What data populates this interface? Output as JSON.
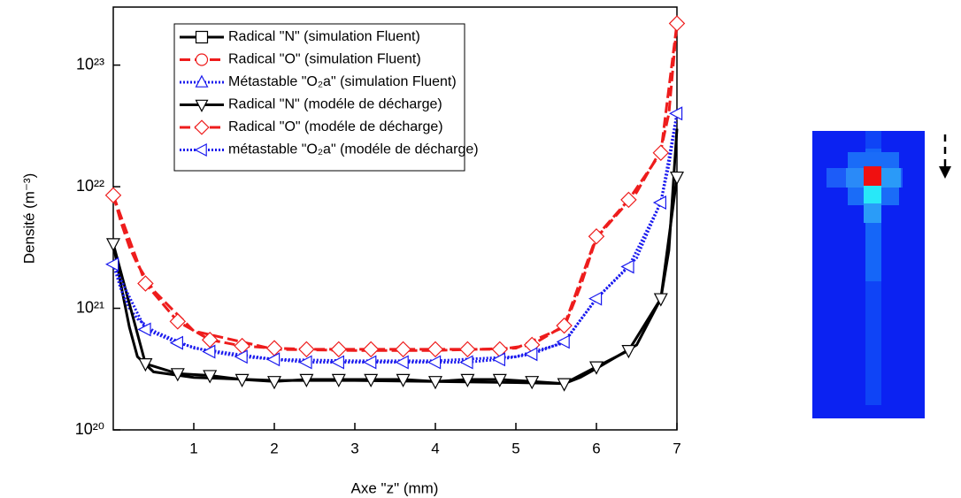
{
  "chart_data": {
    "type": "line",
    "log_y": true,
    "x_label": "Axe \"z\" (mm)",
    "y_label": "Densité  (m⁻³)",
    "xlim": [
      0,
      7
    ],
    "xticks": [
      1,
      2,
      3,
      4,
      5,
      6,
      7
    ],
    "ylim": [
      1e+20,
      3e+23
    ],
    "yticks": [
      {
        "value": 1e+20,
        "label": "10²⁰"
      },
      {
        "value": 1e+21,
        "label": "10²¹"
      },
      {
        "value": 1e+22,
        "label": "10²²"
      },
      {
        "value": 1e+23,
        "label": "10²³"
      }
    ],
    "legend": "top",
    "series": [
      {
        "name": "Radical \"N\" (simulation Fluent)",
        "color": "#000000",
        "dash": "solid",
        "marker": "square",
        "show_markers": false,
        "x": [
          0,
          0.1,
          0.2,
          0.3,
          0.5,
          1,
          2,
          3,
          4,
          5,
          5.6,
          5.8,
          6,
          6.5,
          6.8,
          6.9,
          7
        ],
        "values": [
          3.4e+21,
          1.5e+21,
          7e+20,
          4e+20,
          3e+20,
          2.7e+20,
          2.55e+20,
          2.55e+20,
          2.5e+20,
          2.45e+20,
          2.4e+20,
          2.7e+20,
          3.2e+20,
          5e+20,
          1.2e+21,
          3e+21,
          3e+22
        ]
      },
      {
        "name": "Radical \"O\" (simulation Fluent)",
        "color": "#ee1c1c",
        "dash": "dash",
        "marker": "circle",
        "show_markers": false,
        "x": [
          0,
          0.1,
          0.2,
          0.3,
          0.5,
          1,
          2,
          3,
          4,
          5,
          5.6,
          5.8,
          6,
          6.5,
          6.8,
          6.9,
          7
        ],
        "values": [
          8.5e+21,
          5e+21,
          3.2e+21,
          2.3e+21,
          1.4e+21,
          6.5e+20,
          4.6e+20,
          4.5e+20,
          4.5e+20,
          4.7e+20,
          7e+20,
          1.5e+21,
          3.8e+21,
          9e+21,
          2e+22,
          4e+22,
          2.2e+23
        ]
      },
      {
        "name": "Métastable \"O₂a\" (simulation Fluent)",
        "color": "#1a1aee",
        "dash": "dot",
        "marker": "triangle-up",
        "show_markers": false,
        "x": [
          0,
          0.1,
          0.2,
          0.3,
          0.5,
          1,
          2,
          3,
          4,
          5,
          5.6,
          5.8,
          6,
          6.5,
          6.8,
          6.9,
          7
        ],
        "values": [
          2.3e+21,
          1.4e+21,
          1e+21,
          8.2e+20,
          6.5e+20,
          4.7e+20,
          3.8e+20,
          3.7e+20,
          3.7e+20,
          4e+20,
          5.2e+20,
          8e+20,
          1.2e+21,
          2.6e+21,
          7.5e+21,
          1.5e+22,
          4e+22
        ]
      },
      {
        "name": "Radical \"N\" (modéle de décharge)",
        "color": "#000000",
        "dash": "solid",
        "marker": "triangle-down",
        "show_markers": true,
        "x": [
          0,
          0.4,
          0.8,
          1.2,
          1.6,
          2,
          2.4,
          2.8,
          3.2,
          3.6,
          4,
          4.4,
          4.8,
          5.2,
          5.6,
          6,
          6.4,
          6.8,
          7
        ],
        "values": [
          3.4e+21,
          3.5e+20,
          2.9e+20,
          2.8e+20,
          2.6e+20,
          2.5e+20,
          2.6e+20,
          2.6e+20,
          2.6e+20,
          2.6e+20,
          2.5e+20,
          2.6e+20,
          2.6e+20,
          2.5e+20,
          2.4e+20,
          3.3e+20,
          4.5e+20,
          1.2e+21,
          1.2e+22
        ]
      },
      {
        "name": "Radical \"O\" (modéle de décharge)",
        "color": "#ee1c1c",
        "dash": "dash",
        "marker": "diamond",
        "show_markers": true,
        "x": [
          0,
          0.4,
          0.8,
          1.2,
          1.6,
          2,
          2.4,
          2.8,
          3.2,
          3.6,
          4,
          4.4,
          4.8,
          5.2,
          5.6,
          6,
          6.4,
          6.8,
          7
        ],
        "values": [
          8.5e+21,
          1.6e+21,
          7.8e+20,
          5.5e+20,
          4.9e+20,
          4.7e+20,
          4.6e+20,
          4.6e+20,
          4.6e+20,
          4.6e+20,
          4.6e+20,
          4.6e+20,
          4.6e+20,
          5e+20,
          7.2e+20,
          3.9e+21,
          7.8e+21,
          1.9e+22,
          2.2e+23
        ]
      },
      {
        "name": "métastable \"O₂a\" (modéle de décharge)",
        "color": "#1a1aee",
        "dash": "dot",
        "marker": "triangle-left",
        "show_markers": true,
        "x": [
          0,
          0.4,
          0.8,
          1.2,
          1.6,
          2,
          2.4,
          2.8,
          3.2,
          3.6,
          4,
          4.4,
          4.8,
          5.2,
          5.6,
          6,
          6.4,
          6.8,
          7
        ],
        "values": [
          2.3e+21,
          6.7e+20,
          5.2e+20,
          4.4e+20,
          4e+20,
          3.8e+20,
          3.6e+20,
          3.6e+20,
          3.6e+20,
          3.6e+20,
          3.6e+20,
          3.6e+20,
          3.8e+20,
          4.2e+20,
          5.3e+20,
          1.2e+21,
          2.2e+21,
          7.4e+21,
          4e+22
        ]
      }
    ]
  }
}
